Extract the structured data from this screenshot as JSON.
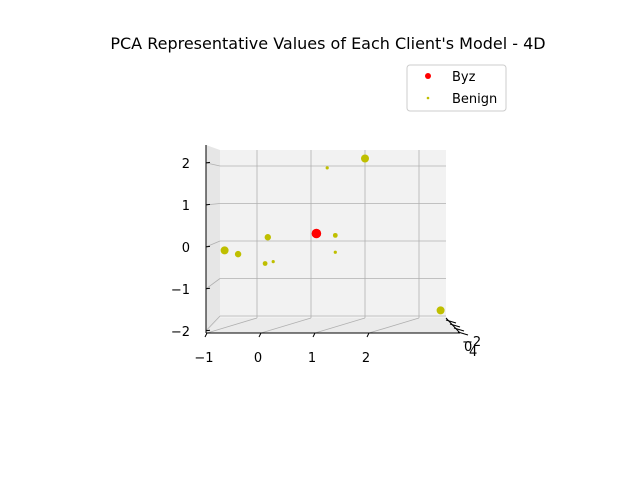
{
  "chart_data": {
    "type": "scatter",
    "title": "PCA Representative Values of Each Client's Model - 4D",
    "xlabel": "",
    "ylabel": "",
    "zlabel": "",
    "x_ticks": [
      "−1",
      "0",
      "1",
      "2"
    ],
    "y_ticks": [
      "−2",
      "−1",
      "0",
      "1",
      "2"
    ],
    "z_ticks": [
      "−2",
      "0",
      "4"
    ],
    "grid": true,
    "legend_position": "top-right",
    "series": [
      {
        "name": "Byz",
        "color": "#ff0000",
        "points": [
          {
            "x": 0.1,
            "y": 0.2,
            "size": 6
          }
        ]
      },
      {
        "name": "Benign",
        "color": "#bfbf00",
        "points": [
          {
            "x": 1.0,
            "y": 2.2,
            "size": 5
          },
          {
            "x": 0.3,
            "y": 1.95,
            "size": 2
          },
          {
            "x": -0.8,
            "y": 0.1,
            "size": 4
          },
          {
            "x": 0.45,
            "y": 0.15,
            "size": 3
          },
          {
            "x": -1.6,
            "y": -0.25,
            "size": 5
          },
          {
            "x": -1.35,
            "y": -0.35,
            "size": 4
          },
          {
            "x": -0.85,
            "y": -0.6,
            "size": 3
          },
          {
            "x": -0.7,
            "y": -0.55,
            "size": 2
          },
          {
            "x": 0.45,
            "y": -0.3,
            "size": 2
          },
          {
            "x": 2.4,
            "y": -1.85,
            "size": 5
          }
        ]
      }
    ]
  }
}
